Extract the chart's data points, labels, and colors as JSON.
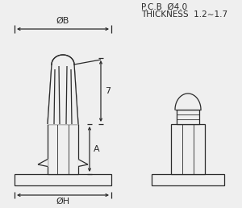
{
  "bg_color": "#efefef",
  "line_color": "#2a2a2a",
  "title_line1": "P.C.B  Ø4.0",
  "title_line2": "THICKNESS  1.2∼1.7",
  "label_phiB": "ØB",
  "label_phiH": "ØH",
  "label_A": "A",
  "label_7": "7",
  "lw": 0.9
}
